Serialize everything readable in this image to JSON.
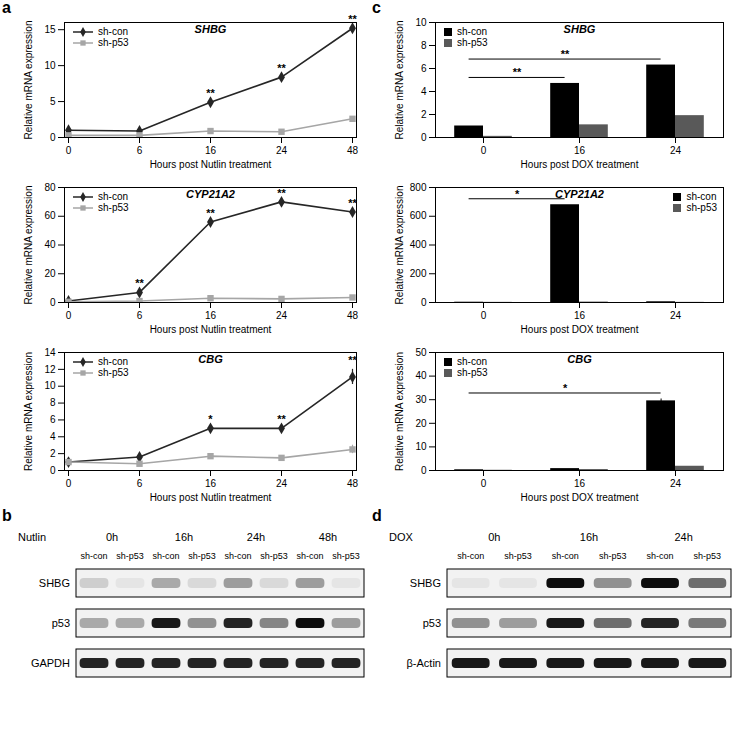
{
  "chart_data": [
    {
      "panel": "a",
      "type": "line",
      "title": "SHBG",
      "x_label": "Hours post Nutlin treatment",
      "y_label": "Relative mRNA expression",
      "categories": [
        "0",
        "6",
        "16",
        "24",
        "48"
      ],
      "ylim": [
        0,
        16
      ],
      "yticks": [
        0,
        5,
        10,
        15
      ],
      "legend": "top-left",
      "series": [
        {
          "name": "sh-con",
          "color": "#262626",
          "marker": "diamond",
          "values": [
            1,
            0.9,
            4.9,
            8.4,
            15.2
          ]
        },
        {
          "name": "sh-p53",
          "color": "#a6a6a6",
          "marker": "square",
          "values": [
            0.3,
            0.3,
            0.9,
            0.8,
            2.6
          ]
        }
      ],
      "annotations": [
        null,
        null,
        "**",
        "**",
        "**"
      ]
    },
    {
      "panel": "a",
      "type": "line",
      "title": "CYP21A2",
      "x_label": "Hours post Nutlin treatment",
      "y_label": "Relative mRNA expression",
      "categories": [
        "0",
        "6",
        "16",
        "24",
        "48"
      ],
      "ylim": [
        0,
        80
      ],
      "yticks": [
        0,
        20,
        40,
        60,
        80
      ],
      "legend": "top-left",
      "series": [
        {
          "name": "sh-con",
          "color": "#262626",
          "marker": "diamond",
          "values": [
            1,
            7,
            56,
            70,
            63
          ]
        },
        {
          "name": "sh-p53",
          "color": "#a6a6a6",
          "marker": "square",
          "values": [
            0.5,
            1,
            3,
            2.5,
            3.5
          ]
        }
      ],
      "annotations": [
        null,
        "**",
        "**",
        "**",
        "**"
      ]
    },
    {
      "panel": "a",
      "type": "line",
      "title": "CBG",
      "x_label": "Hours post Nutlin treatment",
      "y_label": "Relative mRNA expression",
      "categories": [
        "0",
        "6",
        "16",
        "24",
        "48"
      ],
      "ylim": [
        0,
        14
      ],
      "yticks": [
        0,
        2,
        4,
        6,
        8,
        10,
        12,
        14
      ],
      "legend": "top-left",
      "series": [
        {
          "name": "sh-con",
          "color": "#262626",
          "marker": "diamond",
          "values": [
            1,
            1.6,
            5,
            5,
            11.1
          ],
          "errors": [
            null,
            null,
            null,
            null,
            0.9
          ]
        },
        {
          "name": "sh-p53",
          "color": "#a6a6a6",
          "marker": "square",
          "values": [
            1,
            0.8,
            1.7,
            1.5,
            2.5
          ],
          "errors": [
            null,
            null,
            null,
            null,
            0.5
          ]
        }
      ],
      "annotations": [
        null,
        null,
        "*",
        "**",
        "**"
      ]
    },
    {
      "panel": "c",
      "type": "bar",
      "title": "SHBG",
      "x_label": "Hours post DOX treatment",
      "y_label": "Relative mRNA expression",
      "categories": [
        "0",
        "16",
        "24"
      ],
      "ylim": [
        0,
        10
      ],
      "yticks": [
        0,
        2,
        4,
        6,
        8,
        10
      ],
      "legend": "top-left",
      "series": [
        {
          "name": "sh-con",
          "color": "#000000",
          "values": [
            1,
            4.7,
            6.3
          ]
        },
        {
          "name": "sh-p53",
          "color": "#595959",
          "values": [
            0.1,
            1.1,
            1.9
          ]
        }
      ],
      "comparisons": [
        {
          "from": "0",
          "to": "16",
          "label": "**"
        },
        {
          "from": "0",
          "to": "24",
          "label": "**"
        }
      ]
    },
    {
      "panel": "c",
      "type": "bar",
      "title": "CYP21A2",
      "x_label": "Hours post DOX treatment",
      "y_label": "Relative mRNA expression",
      "categories": [
        "0",
        "16",
        "24"
      ],
      "ylim": [
        0,
        800
      ],
      "yticks": [
        0,
        200,
        400,
        600,
        800
      ],
      "legend": "top-right",
      "series": [
        {
          "name": "sh-con",
          "color": "#000000",
          "values": [
            2,
            680,
            5
          ]
        },
        {
          "name": "sh-p53",
          "color": "#595959",
          "values": [
            1,
            3,
            1
          ]
        }
      ],
      "comparisons": [
        {
          "from": "0",
          "to": "16",
          "label": "*"
        }
      ]
    },
    {
      "panel": "c",
      "type": "bar",
      "title": "CBG",
      "x_label": "Hours post DOX treatment",
      "y_label": "Relative mRNA expression",
      "categories": [
        "0",
        "16",
        "24"
      ],
      "ylim": [
        0,
        50
      ],
      "yticks": [
        0,
        10,
        20,
        30,
        40,
        50
      ],
      "legend": "top-left",
      "series": [
        {
          "name": "sh-con",
          "color": "#000000",
          "values": [
            0.3,
            0.8,
            29.5
          ],
          "errors": [
            null,
            null,
            0.8
          ]
        },
        {
          "name": "sh-p53",
          "color": "#595959",
          "values": [
            0.1,
            0.4,
            1.8
          ]
        }
      ],
      "comparisons": [
        {
          "from": "0",
          "to": "24",
          "label": "*"
        }
      ]
    }
  ],
  "blots": [
    {
      "panel": "b",
      "treatment": "Nutlin",
      "timepoints": [
        "0h",
        "16h",
        "24h",
        "48h"
      ],
      "lanes": [
        "sh-con",
        "sh-p53"
      ],
      "rows": [
        {
          "name": "SHBG",
          "intensity": [
            0.15,
            0.05,
            0.3,
            0.1,
            0.35,
            0.1,
            0.35,
            0.05
          ]
        },
        {
          "name": "p53",
          "intensity": [
            0.3,
            0.3,
            0.9,
            0.4,
            0.85,
            0.45,
            0.95,
            0.35
          ]
        },
        {
          "name": "GAPDH",
          "intensity": [
            0.85,
            0.85,
            0.85,
            0.85,
            0.85,
            0.85,
            0.85,
            0.85
          ]
        }
      ]
    },
    {
      "panel": "d",
      "treatment": "DOX",
      "timepoints": [
        "0h",
        "16h",
        "24h"
      ],
      "lanes": [
        "sh-con",
        "sh-p53"
      ],
      "rows": [
        {
          "name": "SHBG",
          "intensity": [
            0.05,
            0.05,
            0.95,
            0.4,
            0.95,
            0.55
          ]
        },
        {
          "name": "p53",
          "intensity": [
            0.4,
            0.35,
            0.9,
            0.55,
            0.85,
            0.5
          ]
        },
        {
          "name": "β-Actin",
          "intensity": [
            0.9,
            0.9,
            0.9,
            0.9,
            0.9,
            0.9
          ]
        }
      ]
    }
  ]
}
